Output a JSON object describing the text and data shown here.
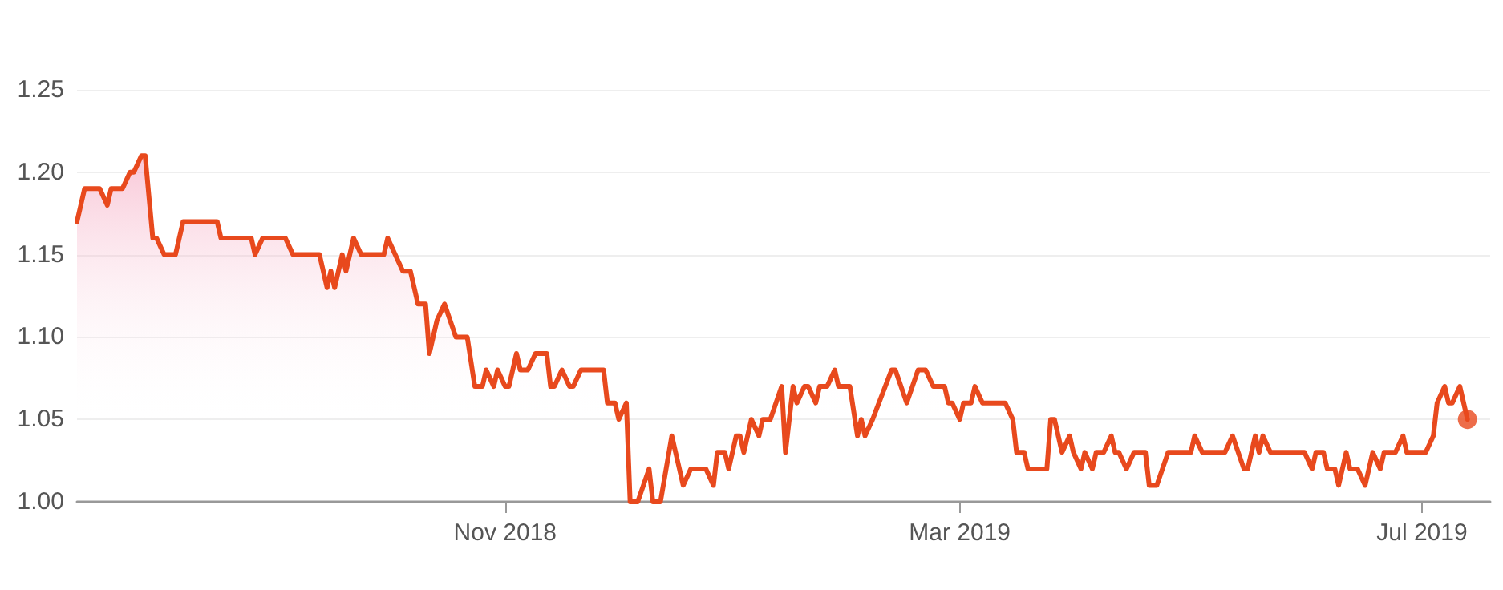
{
  "chart_data": {
    "type": "area",
    "xlim": [
      "2018-07-11",
      "2019-07-19"
    ],
    "ylim": [
      1.0,
      1.25
    ],
    "xticks": [
      {
        "value": "2018-11-01",
        "label": "Nov 2018"
      },
      {
        "value": "2019-03-01",
        "label": "Mar 2019"
      },
      {
        "value": "2019-07-01",
        "label": "Jul 2019"
      }
    ],
    "yticks": [
      {
        "value": 1.0,
        "label": "1.00"
      },
      {
        "value": 1.05,
        "label": "1.05"
      },
      {
        "value": 1.1,
        "label": "1.10"
      },
      {
        "value": 1.15,
        "label": "1.15"
      },
      {
        "value": 1.2,
        "label": "1.20"
      },
      {
        "value": 1.25,
        "label": "1.25"
      }
    ],
    "grid": "y",
    "line_style": "solid",
    "series": [
      {
        "color": "#e8491d",
        "marker": "none",
        "x": [
          "2018-07-11",
          "2018-07-13",
          "2018-07-17",
          "2018-07-19",
          "2018-07-20",
          "2018-07-23",
          "2018-07-25",
          "2018-07-26",
          "2018-07-28",
          "2018-07-29",
          "2018-07-31",
          "2018-08-01",
          "2018-08-03",
          "2018-08-06",
          "2018-08-08",
          "2018-08-17",
          "2018-08-18",
          "2018-08-26",
          "2018-08-27",
          "2018-08-29",
          "2018-09-04",
          "2018-09-06",
          "2018-09-13",
          "2018-09-15",
          "2018-09-16",
          "2018-09-17",
          "2018-09-19",
          "2018-09-20",
          "2018-09-22",
          "2018-09-24",
          "2018-09-30",
          "2018-10-01",
          "2018-10-05",
          "2018-10-07",
          "2018-10-09",
          "2018-10-11",
          "2018-10-12",
          "2018-10-14",
          "2018-10-16",
          "2018-10-19",
          "2018-10-22",
          "2018-10-24",
          "2018-10-26",
          "2018-10-27",
          "2018-10-29",
          "2018-10-30",
          "2018-11-01",
          "2018-11-02",
          "2018-11-04",
          "2018-11-05",
          "2018-11-07",
          "2018-11-09",
          "2018-11-12",
          "2018-11-13",
          "2018-11-14",
          "2018-11-16",
          "2018-11-18",
          "2018-11-19",
          "2018-11-21",
          "2018-11-27",
          "2018-11-28",
          "2018-11-30",
          "2018-12-01",
          "2018-12-03",
          "2018-12-04",
          "2018-12-06",
          "2018-12-09",
          "2018-12-10",
          "2018-12-12",
          "2018-12-15",
          "2018-12-16",
          "2018-12-18",
          "2018-12-20",
          "2018-12-24",
          "2018-12-26",
          "2018-12-27",
          "2018-12-29",
          "2018-12-30",
          "2019-01-01",
          "2019-01-02",
          "2019-01-03",
          "2019-01-05",
          "2019-01-07",
          "2019-01-08",
          "2019-01-10",
          "2019-01-13",
          "2019-01-14",
          "2019-01-16",
          "2019-01-17",
          "2019-01-19",
          "2019-01-20",
          "2019-01-22",
          "2019-01-23",
          "2019-01-25",
          "2019-01-27",
          "2019-01-28",
          "2019-01-31",
          "2019-02-02",
          "2019-02-03",
          "2019-02-04",
          "2019-02-06",
          "2019-02-11",
          "2019-02-12",
          "2019-02-15",
          "2019-02-18",
          "2019-02-20",
          "2019-02-22",
          "2019-02-25",
          "2019-02-26",
          "2019-02-27",
          "2019-03-01",
          "2019-03-02",
          "2019-03-04",
          "2019-03-05",
          "2019-03-07",
          "2019-03-13",
          "2019-03-15",
          "2019-03-16",
          "2019-03-18",
          "2019-03-19",
          "2019-03-24",
          "2019-03-25",
          "2019-03-26",
          "2019-03-28",
          "2019-03-30",
          "2019-03-31",
          "2019-04-02",
          "2019-04-03",
          "2019-04-05",
          "2019-04-06",
          "2019-04-08",
          "2019-04-10",
          "2019-04-11",
          "2019-04-12",
          "2019-04-14",
          "2019-04-16",
          "2019-04-19",
          "2019-04-20",
          "2019-04-22",
          "2019-04-25",
          "2019-05-01",
          "2019-05-02",
          "2019-05-04",
          "2019-05-10",
          "2019-05-12",
          "2019-05-15",
          "2019-05-16",
          "2019-05-18",
          "2019-05-19",
          "2019-05-20",
          "2019-05-22",
          "2019-05-31",
          "2019-06-02",
          "2019-06-03",
          "2019-06-05",
          "2019-06-06",
          "2019-06-08",
          "2019-06-09",
          "2019-06-11",
          "2019-06-12",
          "2019-06-14",
          "2019-06-16",
          "2019-06-17",
          "2019-06-18",
          "2019-06-20",
          "2019-06-21",
          "2019-06-24",
          "2019-06-26",
          "2019-06-27",
          "2019-07-02",
          "2019-07-04",
          "2019-07-05",
          "2019-07-07",
          "2019-07-08",
          "2019-07-09",
          "2019-07-11",
          "2019-07-13"
        ],
        "values": [
          1.17,
          1.19,
          1.19,
          1.18,
          1.19,
          1.19,
          1.2,
          1.2,
          1.21,
          1.21,
          1.16,
          1.16,
          1.15,
          1.15,
          1.17,
          1.17,
          1.16,
          1.16,
          1.15,
          1.16,
          1.16,
          1.15,
          1.15,
          1.13,
          1.14,
          1.13,
          1.15,
          1.14,
          1.16,
          1.15,
          1.15,
          1.16,
          1.14,
          1.14,
          1.12,
          1.12,
          1.09,
          1.11,
          1.12,
          1.1,
          1.1,
          1.07,
          1.07,
          1.08,
          1.07,
          1.08,
          1.07,
          1.07,
          1.09,
          1.08,
          1.08,
          1.09,
          1.09,
          1.07,
          1.07,
          1.08,
          1.07,
          1.07,
          1.08,
          1.08,
          1.06,
          1.06,
          1.05,
          1.06,
          1.0,
          1.0,
          1.02,
          1.0,
          1.0,
          1.04,
          1.03,
          1.01,
          1.02,
          1.02,
          1.01,
          1.03,
          1.03,
          1.02,
          1.04,
          1.04,
          1.03,
          1.05,
          1.04,
          1.05,
          1.05,
          1.07,
          1.03,
          1.07,
          1.06,
          1.07,
          1.07,
          1.06,
          1.07,
          1.07,
          1.08,
          1.07,
          1.07,
          1.04,
          1.05,
          1.04,
          1.05,
          1.08,
          1.08,
          1.06,
          1.08,
          1.08,
          1.07,
          1.07,
          1.06,
          1.06,
          1.05,
          1.06,
          1.06,
          1.07,
          1.06,
          1.06,
          1.05,
          1.03,
          1.03,
          1.02,
          1.02,
          1.05,
          1.05,
          1.03,
          1.04,
          1.03,
          1.02,
          1.03,
          1.02,
          1.03,
          1.03,
          1.04,
          1.03,
          1.03,
          1.02,
          1.03,
          1.03,
          1.01,
          1.01,
          1.03,
          1.03,
          1.04,
          1.03,
          1.03,
          1.04,
          1.02,
          1.02,
          1.04,
          1.03,
          1.04,
          1.03,
          1.03,
          1.02,
          1.03,
          1.03,
          1.02,
          1.02,
          1.01,
          1.03,
          1.02,
          1.02,
          1.01,
          1.02,
          1.03,
          1.02,
          1.03,
          1.03,
          1.04,
          1.03,
          1.03,
          1.04,
          1.06,
          1.07,
          1.06,
          1.06,
          1.07,
          1.05
        ]
      },
      {
        "type": "scatter",
        "color": "#e8491d",
        "marker": "circle",
        "x": [
          "2019-07-13"
        ],
        "values": [
          1.05
        ]
      }
    ]
  }
}
